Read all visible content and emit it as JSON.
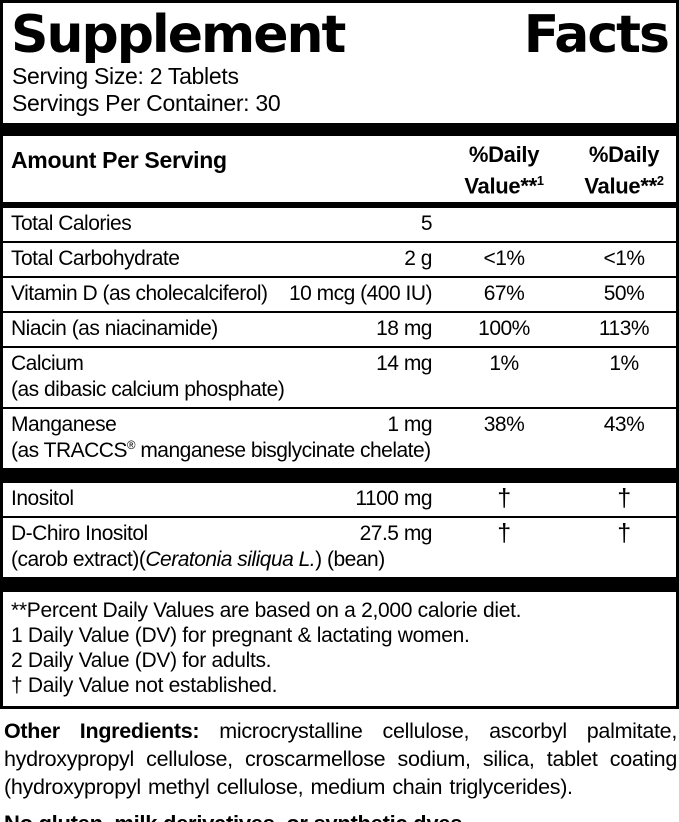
{
  "colors": {
    "text": "#000000",
    "background": "#ffffff",
    "rule": "#000000"
  },
  "title": {
    "word1": "Supplement",
    "word2": "Facts"
  },
  "serving": {
    "size": "Serving Size: 2 Tablets",
    "per_container": "Servings Per Container: 30"
  },
  "table": {
    "header": {
      "amount_per_serving": "Amount Per Serving",
      "dv_col1": {
        "line1": "%Daily",
        "line2": "Value**",
        "sup": "1"
      },
      "dv_col2": {
        "line1": "%Daily",
        "line2": "Value**",
        "sup": "2"
      }
    },
    "rows": [
      {
        "name": "Total Calories",
        "amount": "5",
        "dv1": "",
        "dv2": ""
      },
      {
        "name": "Total Carbohydrate",
        "amount": "2 g",
        "dv1": "<1%",
        "dv2": "<1%"
      },
      {
        "name": "Vitamin D (as cholecalciferol)",
        "amount": "10 mcg (400 IU)",
        "dv1": "67%",
        "dv2": "50%"
      },
      {
        "name": "Niacin (as niacinamide)",
        "amount": "18 mg",
        "dv1": "100%",
        "dv2": "113%"
      },
      {
        "name": "Calcium",
        "sub": "(as dibasic calcium phosphate)",
        "amount": "14 mg",
        "dv1": "1%",
        "dv2": "1%"
      },
      {
        "name": "Manganese",
        "sub_pre": "(as TRACCS",
        "sub_sup": "®",
        "sub_post": " manganese bisglycinate chelate)",
        "amount": "1 mg",
        "dv1": "38%",
        "dv2": "43%"
      },
      {
        "name": "Inositol",
        "amount": "1100 mg",
        "dv1": "†",
        "dv2": "†"
      },
      {
        "name": "D-Chiro Inositol",
        "sub_pre": "(carob extract)(",
        "sub_italic": "Ceratonia siliqua L.",
        "sub_post": ") (bean)",
        "amount": "27.5 mg",
        "dv1": "†",
        "dv2": "†"
      }
    ]
  },
  "footnotes": [
    "**Percent Daily Values are based on a 2,000 calorie diet.",
    "1 Daily Value (DV) for pregnant & lactating women.",
    "2 Daily Value (DV) for adults.",
    "† Daily Value not established."
  ],
  "other_ingredients": {
    "label": "Other Ingredients:",
    "text": "microcrystalline cellulose, ascorbyl palmitate, hydroxypropyl cellulose, croscarmellose sodium, silica, tablet coating (hydroxypropyl methyl cellulose, medium chain triglycerides)."
  },
  "allergen_statement": "No gluten, milk derivatives, or synthetic dyes."
}
